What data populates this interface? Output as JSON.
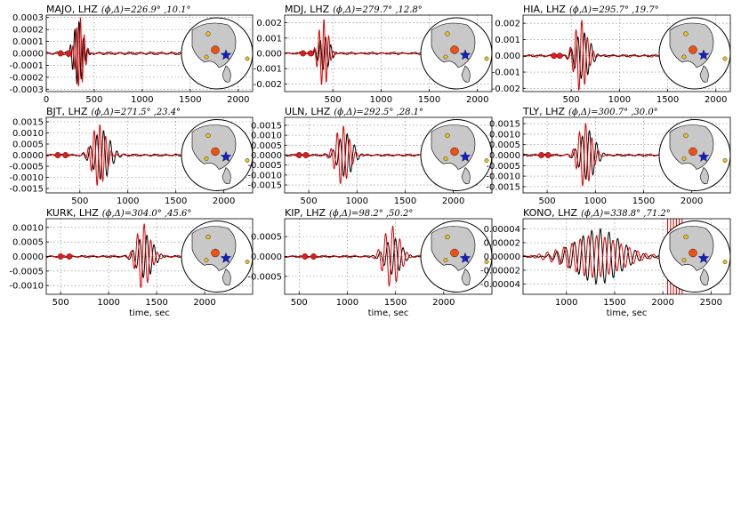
{
  "chart_data": [
    {
      "type": "line",
      "title": "MAJO, LHZ",
      "title_math": "(ϕ,Δ)=226.9° ,10.1°",
      "station": "MAJO",
      "xlim": [
        0,
        2150
      ],
      "ylim": [
        -0.00032,
        0.00032
      ],
      "xticks": [
        0,
        500,
        1000,
        1500,
        2000
      ],
      "yticks": [
        "0.0003",
        "0.0002",
        "0.0001",
        "0.0000",
        "-0.0001",
        "-0.0002",
        "-0.0003"
      ],
      "ytick_values": [
        0.0003,
        0.0002,
        0.0001,
        0.0,
        -0.0001,
        -0.0002,
        -0.0003
      ],
      "xlabel": "",
      "pick_times": [
        150,
        230
      ],
      "observed_peak": [
        {
          "t": 330,
          "a": -0.00027
        },
        {
          "t": 370,
          "a": 0.00022
        }
      ],
      "series": [
        {
          "color": "#000000",
          "arrivals": [
            {
              "t0": 330,
              "amp": 0.00027,
              "period": 45,
              "width": 90
            }
          ]
        },
        {
          "color": "#e00000",
          "arrivals": [
            {
              "t0": 350,
              "amp": 0.0003,
              "period": 40,
              "width": 80
            }
          ]
        }
      ],
      "inset": {
        "events": "yellow",
        "station": "red",
        "source": "blue-star"
      }
    },
    {
      "type": "line",
      "title": "MDJ, LHZ",
      "title_math": "(ϕ,Δ)=279.7° ,12.8°",
      "station": "MDJ",
      "xlim": [
        0,
        2150
      ],
      "ylim": [
        -0.0025,
        0.0025
      ],
      "xticks": [
        500,
        1000,
        1500,
        2000
      ],
      "yticks": [
        "0.002",
        "0.001",
        "0.000",
        "-0.001",
        "-0.002"
      ],
      "ytick_values": [
        0.002,
        0.001,
        0.0,
        -0.001,
        -0.002
      ],
      "xlabel": "",
      "pick_times": [
        190,
        270
      ],
      "series": [
        {
          "color": "#000000",
          "arrivals": [
            {
              "t0": 410,
              "amp": 0.0011,
              "period": 55,
              "width": 110
            }
          ]
        },
        {
          "color": "#e00000",
          "arrivals": [
            {
              "t0": 400,
              "amp": 0.0023,
              "period": 50,
              "width": 90
            }
          ]
        }
      ],
      "inset": {
        "events": "yellow",
        "station": "red",
        "source": "blue-star"
      }
    },
    {
      "type": "line",
      "title": "HIA, LHZ",
      "title_math": "(ϕ,Δ)=295.7° ,19.7°",
      "station": "HIA",
      "xlim": [
        0,
        2150
      ],
      "ylim": [
        -0.0022,
        0.0025
      ],
      "xticks": [
        500,
        1000,
        1500,
        2000
      ],
      "yticks": [
        "0.002",
        "0.001",
        "0.000",
        "-0.001",
        "-0.002"
      ],
      "ytick_values": [
        0.002,
        0.001,
        0.0,
        -0.001,
        -0.002
      ],
      "xlabel": "",
      "pick_times": [
        320,
        380
      ],
      "series": [
        {
          "color": "#000000",
          "arrivals": [
            {
              "t0": 620,
              "amp": 0.0015,
              "period": 70,
              "width": 140
            }
          ]
        },
        {
          "color": "#e00000",
          "arrivals": [
            {
              "t0": 600,
              "amp": 0.0022,
              "period": 60,
              "width": 120
            }
          ]
        }
      ],
      "inset": {
        "events": "yellow",
        "station": "red",
        "source": "blue-star"
      }
    },
    {
      "type": "line",
      "title": "BJT, LHZ",
      "title_math": "(ϕ,Δ)=271.5° ,23.4°",
      "station": "BJT",
      "xlim": [
        150,
        2300
      ],
      "ylim": [
        -0.0017,
        0.0017
      ],
      "xticks": [
        500,
        1000,
        1500,
        2000
      ],
      "yticks": [
        "0.0015",
        "0.0010",
        "0.0005",
        "0.0000",
        "-0.0005",
        "-0.0010",
        "-0.0015"
      ],
      "ytick_values": [
        0.0015,
        0.001,
        0.0005,
        0.0,
        -0.0005,
        -0.001,
        -0.0015
      ],
      "xlabel": "",
      "pick_times": [
        270,
        350
      ],
      "series": [
        {
          "color": "#000000",
          "arrivals": [
            {
              "t0": 730,
              "amp": 0.0011,
              "period": 70,
              "width": 160
            }
          ]
        },
        {
          "color": "#e00000",
          "arrivals": [
            {
              "t0": 700,
              "amp": 0.0014,
              "period": 60,
              "width": 130
            }
          ]
        }
      ],
      "inset": {
        "events": "yellow",
        "station": "red",
        "source": "blue-star"
      }
    },
    {
      "type": "line",
      "title": "ULN, LHZ",
      "title_math": "(ϕ,Δ)=292.5° ,28.1°",
      "station": "ULN",
      "xlim": [
        250,
        2400
      ],
      "ylim": [
        -0.0019,
        0.0019
      ],
      "xticks": [
        500,
        1000,
        1500,
        2000
      ],
      "yticks": [
        "0.0015",
        "0.0010",
        "0.0005",
        "0.0000",
        "-0.0005",
        "-0.0010",
        "-0.0015"
      ],
      "ytick_values": [
        0.0015,
        0.001,
        0.0005,
        0.0,
        -0.0005,
        -0.001,
        -0.0015
      ],
      "xlabel": "",
      "pick_times": [
        400,
        470
      ],
      "series": [
        {
          "color": "#000000",
          "arrivals": [
            {
              "t0": 880,
              "amp": 0.0011,
              "period": 75,
              "width": 140
            }
          ]
        },
        {
          "color": "#e00000",
          "arrivals": [
            {
              "t0": 850,
              "amp": 0.0015,
              "period": 65,
              "width": 130
            }
          ]
        }
      ],
      "inset": {
        "events": "yellow",
        "station": "red",
        "source": "blue-star"
      }
    },
    {
      "type": "line",
      "title": "TLY, LHZ",
      "title_math": "(ϕ,Δ)=300.7° ,30.0°",
      "station": "TLY",
      "xlim": [
        250,
        2400
      ],
      "ylim": [
        -0.0018,
        0.0018
      ],
      "xticks": [
        500,
        1000,
        1500,
        2000
      ],
      "yticks": [
        "0.0015",
        "0.0010",
        "0.0005",
        "0.0000",
        "-0.0005",
        "-0.0010",
        "-0.0015"
      ],
      "ytick_values": [
        0.0015,
        0.001,
        0.0005,
        0.0,
        -0.0005,
        -0.001,
        -0.0015
      ],
      "xlabel": "",
      "pick_times": [
        440,
        510
      ],
      "series": [
        {
          "color": "#000000",
          "arrivals": [
            {
              "t0": 920,
              "amp": 0.0012,
              "period": 75,
              "width": 140
            }
          ]
        },
        {
          "color": "#e00000",
          "arrivals": [
            {
              "t0": 890,
              "amp": 0.0015,
              "period": 65,
              "width": 130
            }
          ]
        }
      ],
      "inset": {
        "events": "yellow",
        "station": "red",
        "source": "blue-star"
      }
    },
    {
      "type": "line",
      "title": "KURK, LHZ",
      "title_math": "(ϕ,Δ)=304.0° ,45.6°",
      "station": "KURK",
      "xlim": [
        350,
        2500
      ],
      "ylim": [
        -0.0013,
        0.0013
      ],
      "xticks": [
        500,
        1000,
        1500,
        2000
      ],
      "yticks": [
        "0.0010",
        "0.0005",
        "0.0000",
        "-0.0005",
        "-0.0010"
      ],
      "ytick_values": [
        0.001,
        0.0005,
        0.0,
        -0.0005,
        -0.001
      ],
      "xlabel": "time, sec",
      "pick_times": [
        500,
        590
      ],
      "series": [
        {
          "color": "#000000",
          "arrivals": [
            {
              "t0": 1380,
              "amp": 0.00075,
              "period": 75,
              "width": 150
            }
          ]
        },
        {
          "color": "#e00000",
          "arrivals": [
            {
              "t0": 1360,
              "amp": 0.00112,
              "period": 70,
              "width": 130
            }
          ]
        }
      ],
      "inset": {
        "events": "yellow",
        "station": "red",
        "source": "blue-star"
      }
    },
    {
      "type": "line",
      "title": "KIP, LHZ",
      "title_math": "(ϕ,Δ)=98.2° ,50.2°",
      "station": "KIP",
      "xlim": [
        350,
        2500
      ],
      "ylim": [
        -0.00095,
        0.00095
      ],
      "xticks": [
        500,
        1000,
        1500,
        2000
      ],
      "yticks": [
        "0.0005",
        "0.0000",
        "-0.0005"
      ],
      "ytick_values": [
        0.0005,
        0.0,
        -0.0005
      ],
      "xlabel": "time, sec",
      "pick_times": [
        560,
        650
      ],
      "series": [
        {
          "color": "#000000",
          "arrivals": [
            {
              "t0": 1480,
              "amp": 0.00045,
              "period": 80,
              "width": 160
            }
          ]
        },
        {
          "color": "#e00000",
          "arrivals": [
            {
              "t0": 1460,
              "amp": 0.0008,
              "period": 75,
              "width": 150
            }
          ]
        }
      ],
      "inset": {
        "events": "yellow",
        "station": "red",
        "source": "blue-star"
      }
    },
    {
      "type": "line",
      "title": "KONO, LHZ",
      "title_math": "(ϕ,Δ)=338.8° ,71.2°",
      "station": "KONO",
      "xlim": [
        550,
        2700
      ],
      "ylim": [
        -5.5e-05,
        5.5e-05
      ],
      "xticks": [
        1000,
        1500,
        2000,
        2500
      ],
      "yticks": [
        "0.00004",
        "0.00002",
        "0.00000",
        "-0.00002",
        "-0.00004"
      ],
      "ytick_values": [
        4e-05,
        2e-05,
        0.0,
        -2e-05,
        -4e-05
      ],
      "xlabel": "time, sec",
      "pick_times": [],
      "series": [
        {
          "color": "#000000",
          "arrivals": [
            {
              "t0": 1330,
              "amp": 4e-05,
              "period": 90,
              "width": 420
            }
          ]
        },
        {
          "color": "#e00000",
          "arrivals": [
            {
              "t0": 1300,
              "amp": 3e-05,
              "period": 85,
              "width": 520
            }
          ]
        }
      ],
      "spike_band": [
        2050,
        2200
      ],
      "inset": {
        "events": "yellow",
        "station": "red",
        "source": "blue-star"
      }
    }
  ],
  "colors": {
    "observed": "#000000",
    "synthetic": "#e00000",
    "pick_marker": "#d82020",
    "globe_land": "#c8c8c8",
    "event_marker": "#f0c020",
    "station_marker": "#f05010",
    "source_marker": "#1020d0"
  }
}
